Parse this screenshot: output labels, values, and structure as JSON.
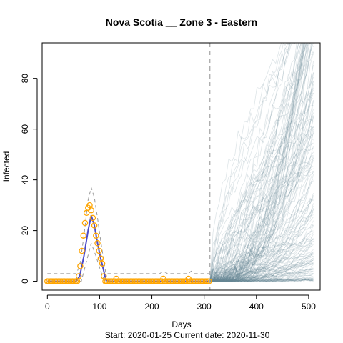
{
  "chart_data": {
    "type": "line",
    "title": "Nova Scotia __ Zone 3 - Eastern",
    "xlabel": "Days",
    "ylabel": "Infected",
    "subtitle": "Start:  2020-01-25   Current date:  2020-11-30",
    "xlim": [
      -10,
      522
    ],
    "ylim": [
      -3.5,
      94
    ],
    "xticks": [
      0,
      100,
      200,
      300,
      400,
      500
    ],
    "yticks": [
      0,
      20,
      40,
      60,
      80
    ],
    "grid": false,
    "current_day": 311,
    "observed_x": [
      0,
      3,
      6,
      9,
      12,
      15,
      18,
      21,
      24,
      27,
      30,
      33,
      36,
      39,
      42,
      45,
      48,
      51,
      54,
      57,
      60,
      63,
      66,
      69,
      72,
      75,
      78,
      81,
      84,
      87,
      90,
      93,
      96,
      99,
      102,
      105,
      108,
      111,
      114,
      117,
      120,
      123,
      126,
      129,
      132,
      135,
      138,
      141,
      144,
      147,
      150,
      153,
      156,
      159,
      162,
      165,
      168,
      171,
      174,
      177,
      180,
      183,
      186,
      189,
      192,
      195,
      198,
      201,
      204,
      207,
      210,
      213,
      216,
      219,
      222,
      225,
      228,
      231,
      234,
      237,
      240,
      243,
      246,
      249,
      252,
      255,
      258,
      261,
      264,
      267,
      270,
      273,
      276,
      279,
      282,
      285,
      288,
      291,
      294,
      297,
      300,
      303,
      306,
      309
    ],
    "observed_y": [
      0,
      0,
      0,
      0,
      0,
      0,
      0,
      0,
      0,
      0,
      0,
      0,
      0,
      0,
      0,
      0,
      0,
      0,
      0,
      0,
      2,
      6,
      12,
      18,
      23,
      27,
      29,
      30,
      28,
      25,
      22,
      18,
      15,
      12,
      9,
      7,
      2,
      0,
      0,
      0,
      0,
      0,
      0,
      0,
      1,
      0,
      0,
      0,
      0,
      0,
      0,
      0,
      0,
      0,
      0,
      0,
      0,
      0,
      0,
      0,
      0,
      0,
      0,
      0,
      0,
      0,
      0,
      0,
      0,
      0,
      0,
      0,
      0,
      0,
      1,
      0,
      0,
      0,
      0,
      0,
      0,
      0,
      0,
      0,
      0,
      0,
      0,
      0,
      0,
      0,
      1,
      0,
      0,
      0,
      0,
      0,
      0,
      0,
      0,
      0,
      0,
      0,
      0,
      0
    ],
    "fit_x": [
      0,
      55,
      62,
      70,
      78,
      84,
      90,
      96,
      102,
      108,
      112,
      118,
      311
    ],
    "fit_y": [
      0,
      0,
      2,
      10,
      20,
      26,
      22,
      15,
      9,
      4,
      0.5,
      0,
      0
    ],
    "band_upper_x": [
      0,
      55,
      62,
      70,
      78,
      84,
      90,
      96,
      102,
      108,
      112,
      120,
      215,
      222,
      230,
      270,
      275,
      280,
      311
    ],
    "band_upper_y": [
      3,
      3,
      6,
      18,
      32,
      37,
      33,
      25,
      16,
      8,
      3,
      3,
      3,
      4,
      3,
      3,
      4,
      3,
      3
    ],
    "band_lower_x": [
      0,
      65,
      75,
      84,
      93,
      102,
      110,
      311
    ],
    "band_lower_y": [
      0,
      0,
      8,
      15,
      10,
      4,
      0,
      0
    ],
    "simulation_count": 170,
    "colors": {
      "observed": "#FFA500",
      "fit": "#4B4BC8",
      "band": "#999999",
      "simulations": "#6A8A98",
      "current_day_line": "#AAAAAA"
    }
  }
}
